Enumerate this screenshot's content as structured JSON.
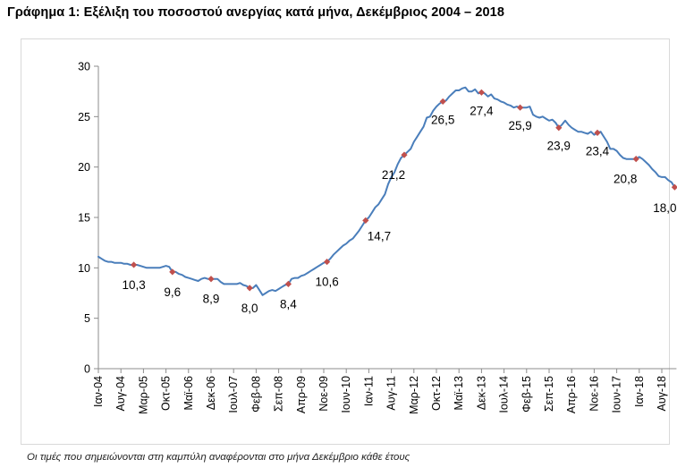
{
  "title": "Γράφημα 1: Εξέλιξη του ποσοστού ανεργίας κατά μήνα, Δεκέμβριος 2004 – 2018",
  "footnote": "Οι τιμές που σημειώνονται στη καμπύλη αναφέρονται στο μήνα Δεκέμβριο κάθε έτους",
  "colors": {
    "line": "#4a7ebb",
    "marker": "#c0504d",
    "axis": "#8c8c8c",
    "frame": "#d9d9d9"
  },
  "chart_data": {
    "type": "line",
    "title": "Γράφημα 1: Εξέλιξη του ποσοστού ανεργίας κατά μήνα, Δεκέμβριος 2004 – 2018",
    "xlabel": "",
    "ylabel": "",
    "ylim": [
      0,
      30
    ],
    "yticks": [
      0,
      5,
      10,
      15,
      20,
      25,
      30
    ],
    "grid": false,
    "legend": "none",
    "x_start": "Ιαν-04",
    "x_tick_labels": [
      "Ιαν-04",
      "Αυγ-04",
      "Μαρ-05",
      "Οκτ-05",
      "Μαϊ-06",
      "Δεκ-06",
      "Ιουλ-07",
      "Φεβ-08",
      "Σεπ-08",
      "Απρ-09",
      "Νοε-09",
      "Ιουν-10",
      "Ιαν-11",
      "Αυγ-11",
      "Μαρ-12",
      "Οκτ-12",
      "Μαϊ-13",
      "Δεκ-13",
      "Ιουλ-14",
      "Φεβ-15",
      "Σεπ-15",
      "Απρ-16",
      "Νοε-16",
      "Ιουν-17",
      "Ιαν-18",
      "Αυγ-18"
    ],
    "series": [
      {
        "values": [
          11.1,
          10.9,
          10.7,
          10.6,
          10.6,
          10.5,
          10.5,
          10.5,
          10.4,
          10.4,
          10.3,
          10.3,
          10.3,
          10.2,
          10.1,
          10.0,
          10.0,
          10.0,
          10.0,
          10.0,
          10.1,
          10.2,
          10.1,
          9.6,
          9.6,
          9.4,
          9.3,
          9.1,
          9.0,
          8.9,
          8.8,
          8.7,
          8.9,
          9.0,
          8.9,
          8.9,
          8.9,
          8.9,
          8.6,
          8.4,
          8.4,
          8.4,
          8.4,
          8.4,
          8.5,
          8.3,
          8.2,
          8.0,
          8.0,
          8.3,
          7.8,
          7.3,
          7.5,
          7.7,
          7.8,
          7.7,
          7.9,
          8.1,
          8.3,
          8.4,
          8.9,
          9.0,
          9.0,
          9.2,
          9.3,
          9.5,
          9.7,
          9.9,
          10.1,
          10.3,
          10.5,
          10.6,
          10.9,
          11.3,
          11.6,
          11.9,
          12.2,
          12.4,
          12.7,
          12.9,
          13.3,
          13.7,
          14.2,
          14.7,
          15.0,
          15.5,
          16.0,
          16.3,
          16.8,
          17.3,
          18.3,
          19.0,
          19.5,
          20.3,
          20.9,
          21.2,
          21.5,
          21.8,
          22.5,
          23.0,
          23.5,
          24.0,
          24.9,
          25.0,
          25.6,
          26.0,
          26.3,
          26.5,
          26.6,
          27.0,
          27.3,
          27.6,
          27.6,
          27.8,
          27.9,
          27.5,
          27.5,
          27.7,
          27.3,
          27.4,
          27.3,
          27.0,
          27.2,
          26.8,
          26.7,
          26.5,
          26.4,
          26.2,
          26.1,
          25.9,
          26.0,
          25.9,
          25.9,
          25.9,
          26.0,
          25.2,
          25.0,
          24.9,
          25.0,
          24.8,
          24.6,
          24.7,
          24.4,
          23.9,
          24.2,
          24.6,
          24.2,
          23.9,
          23.7,
          23.5,
          23.5,
          23.4,
          23.3,
          23.5,
          23.2,
          23.4,
          23.5,
          23.0,
          22.5,
          21.8,
          21.8,
          21.6,
          21.2,
          20.9,
          20.8,
          20.8,
          20.8,
          20.8,
          21.0,
          20.8,
          20.5,
          20.2,
          19.8,
          19.5,
          19.1,
          19.0,
          19.0,
          18.7,
          18.5,
          18.0
        ]
      }
    ],
    "annotations": [
      {
        "x": "Δεκ-04",
        "value": 10.3,
        "label": "10,3"
      },
      {
        "x": "Δεκ-05",
        "value": 9.6,
        "label": "9,6"
      },
      {
        "x": "Δεκ-06",
        "value": 8.9,
        "label": "8,9"
      },
      {
        "x": "Δεκ-07",
        "value": 8.0,
        "label": "8,0"
      },
      {
        "x": "Δεκ-08",
        "value": 8.4,
        "label": "8,4"
      },
      {
        "x": "Δεκ-09",
        "value": 10.6,
        "label": "10,6"
      },
      {
        "x": "Δεκ-10",
        "value": 14.7,
        "label": "14,7"
      },
      {
        "x": "Δεκ-11",
        "value": 21.2,
        "label": "21,2"
      },
      {
        "x": "Δεκ-12",
        "value": 26.5,
        "label": "26,5"
      },
      {
        "x": "Δεκ-13",
        "value": 27.4,
        "label": "27,4"
      },
      {
        "x": "Δεκ-14",
        "value": 25.9,
        "label": "25,9"
      },
      {
        "x": "Δεκ-15",
        "value": 23.9,
        "label": "23,9"
      },
      {
        "x": "Δεκ-16",
        "value": 23.4,
        "label": "23,4"
      },
      {
        "x": "Δεκ-17",
        "value": 20.8,
        "label": "20,8"
      },
      {
        "x": "Δεκ-18",
        "value": 18.0,
        "label": "18,0"
      }
    ]
  }
}
